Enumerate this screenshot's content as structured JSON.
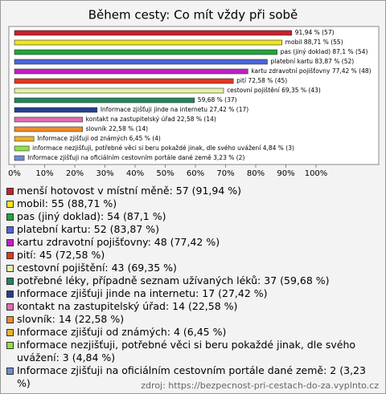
{
  "chart_data": {
    "type": "bar",
    "orientation": "horizontal",
    "title": "Během cesty: Co mít vždy při sobě",
    "categories": [
      "menší hotovost v místní měně: 57 (91,94 %)",
      "mobil: 55 (88,71 %)",
      "pas (jiný doklad): 54 (87,1 %)",
      "platební kartu: 52 (83,87 %)",
      "kartu zdravotní pojišťovny: 48 (77,42 %)",
      "pití: 45 (72,58 %)",
      "cestovní pojištění: 43 (69,35 %)",
      "potřebné léky, případně seznam užívaných léků: 37 (59,68 %)",
      "Informace zjišťuji jinde na internetu: 17 (27,42 %)",
      "kontakt na zastupitelský úřad: 14 (22,58 %)",
      "slovník: 14 (22,58 %)",
      "Informace zjišťuji od známých: 4 (6,45 %)",
      "informace nezjišťuji, potřebné věci si beru pokaždé jinak, dle svého uvážení: 3 (4,84 %)",
      "Informace zjišťuji na oficiálním cestovním portále dané země: 2 (3,23 %)"
    ],
    "values": [
      91.94,
      88.71,
      87.1,
      83.87,
      77.42,
      72.58,
      69.35,
      59.68,
      27.42,
      22.58,
      22.58,
      6.45,
      4.84,
      3.23
    ],
    "value_labels": [
      "91,94 % (57)",
      "mobil 88,71 % (55)",
      "pas (jiný doklad) 87,1 % (54)",
      "platební kartu 83,87 % (52)",
      "kartu zdravotní pojišťovny 77,42 % (48)",
      "pití 72,58 % (45)",
      "cestovní pojištění 69,35 % (43)",
      "59,68 % (37)",
      "Informace zjišťuji jinde na internetu 27,42 % (17)",
      "kontakt na zastupitelský úřad 22,58 % (14)",
      "slovník 22,58 % (14)",
      "Informace zjišťuji od známých 6,45 % (4)",
      "informace nezjišťuji, potřebné věci si beru pokaždé jinak, dle svého uvážení 4,84 % (3)",
      "Informace zjišťuji na oficiálním cestovním portále dané země 3,23 % (2)"
    ],
    "colors": [
      "#c8202a",
      "#f2e41e",
      "#1fa53a",
      "#4a64dc",
      "#c21fc8",
      "#e4361e",
      "#e4f0a8",
      "#23855a",
      "#25408f",
      "#e36bb0",
      "#ef8a2a",
      "#eeb028",
      "#8fe04a",
      "#6d8bd0"
    ],
    "xlim": [
      0,
      100
    ],
    "xticks": [
      {
        "value": 0,
        "label": "0%"
      },
      {
        "value": 10,
        "label": "10%"
      },
      {
        "value": 20,
        "label": "20%"
      },
      {
        "value": 30,
        "label": "30%"
      },
      {
        "value": 40,
        "label": "40%"
      },
      {
        "value": 50,
        "label": "50%"
      },
      {
        "value": 60,
        "label": "60%"
      },
      {
        "value": 70,
        "label": "70%"
      },
      {
        "value": 80,
        "label": "80%"
      },
      {
        "value": 90,
        "label": "90%"
      },
      {
        "value": 100,
        "label": "100%"
      }
    ],
    "source": "zdroj: https://bezpecnost-pri-cestach-do-za.vyplnto.cz"
  }
}
